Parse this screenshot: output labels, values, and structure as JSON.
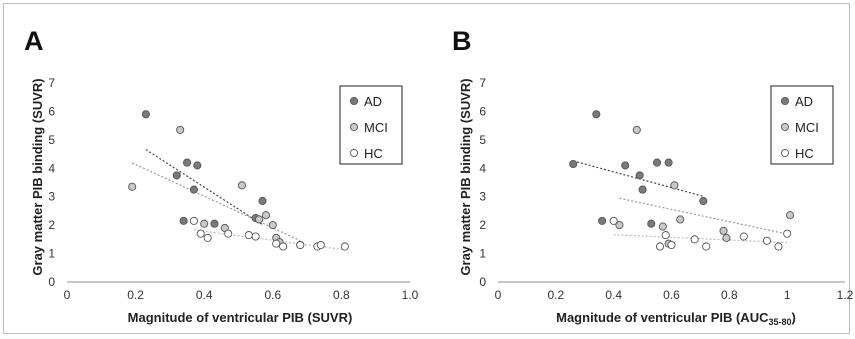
{
  "colors": {
    "AD": "#7a7a7a",
    "MCI": "#c8c8c8",
    "HC": "#ffffff",
    "marker_edge": "#555555",
    "trend_AD": "#444444",
    "trend_MCI": "#999999",
    "trend_HC": "#bbbbbb"
  },
  "chart_data": [
    {
      "type": "scatter",
      "panel_label": "A",
      "xlabel": "Magnitude of ventricular PIB (SUVR)",
      "ylabel": "Gray matter PIB binding (SUVR)",
      "xlim": [
        0,
        1.0
      ],
      "ylim": [
        0,
        7
      ],
      "x_ticks": [
        "0",
        "0.2",
        "0.4",
        "0.6",
        "0.8",
        "1.0"
      ],
      "y_ticks": [
        "0",
        "1",
        "2",
        "3",
        "4",
        "5",
        "6",
        "7"
      ],
      "legend": {
        "position": "right",
        "entries": [
          "AD",
          "MCI",
          "HC"
        ]
      },
      "series": [
        {
          "name": "AD",
          "trendline": true,
          "points": [
            [
              0.23,
              5.9
            ],
            [
              0.32,
              3.75
            ],
            [
              0.34,
              2.15
            ],
            [
              0.35,
              4.2
            ],
            [
              0.37,
              3.25
            ],
            [
              0.38,
              4.1
            ],
            [
              0.43,
              2.05
            ],
            [
              0.55,
              2.25
            ],
            [
              0.57,
              2.85
            ]
          ]
        },
        {
          "name": "MCI",
          "trendline": true,
          "points": [
            [
              0.19,
              3.35
            ],
            [
              0.33,
              5.35
            ],
            [
              0.4,
              2.05
            ],
            [
              0.46,
              1.9
            ],
            [
              0.51,
              3.4
            ],
            [
              0.56,
              2.2
            ],
            [
              0.58,
              2.35
            ],
            [
              0.6,
              2.0
            ],
            [
              0.61,
              1.55
            ],
            [
              0.62,
              1.4
            ],
            [
              0.68,
              1.3
            ]
          ]
        },
        {
          "name": "HC",
          "trendline": true,
          "points": [
            [
              0.37,
              2.15
            ],
            [
              0.39,
              1.7
            ],
            [
              0.41,
              1.55
            ],
            [
              0.47,
              1.7
            ],
            [
              0.53,
              1.65
            ],
            [
              0.55,
              1.6
            ],
            [
              0.61,
              1.35
            ],
            [
              0.63,
              1.25
            ],
            [
              0.68,
              1.3
            ],
            [
              0.73,
              1.25
            ],
            [
              0.74,
              1.3
            ],
            [
              0.81,
              1.25
            ]
          ]
        }
      ]
    },
    {
      "type": "scatter",
      "panel_label": "B",
      "xlabel_main": "Magnitude of ventricular PIB (AUC",
      "xlabel_sub": "35-80",
      "xlabel_end": ")",
      "ylabel": "Gray matter PIB binding (SUVR)",
      "xlim": [
        0,
        1.2
      ],
      "ylim": [
        0,
        7
      ],
      "x_ticks": [
        "0",
        "0.2",
        "0.4",
        "0.6",
        "0.8",
        "1",
        "1.2"
      ],
      "y_ticks": [
        "0",
        "1",
        "2",
        "3",
        "4",
        "5",
        "6",
        "7"
      ],
      "legend": {
        "position": "right",
        "entries": [
          "AD",
          "MCI",
          "HC"
        ]
      },
      "series": [
        {
          "name": "AD",
          "trendline": true,
          "points": [
            [
              0.26,
              4.15
            ],
            [
              0.34,
              5.9
            ],
            [
              0.36,
              2.15
            ],
            [
              0.44,
              4.1
            ],
            [
              0.49,
              3.75
            ],
            [
              0.5,
              3.25
            ],
            [
              0.53,
              2.05
            ],
            [
              0.55,
              4.2
            ],
            [
              0.59,
              4.2
            ],
            [
              0.71,
              2.85
            ]
          ]
        },
        {
          "name": "MCI",
          "trendline": true,
          "points": [
            [
              0.42,
              2.0
            ],
            [
              0.48,
              5.35
            ],
            [
              0.57,
              1.95
            ],
            [
              0.59,
              1.35
            ],
            [
              0.61,
              3.4
            ],
            [
              0.63,
              2.2
            ],
            [
              0.78,
              1.8
            ],
            [
              0.79,
              1.55
            ],
            [
              1.01,
              2.35
            ]
          ]
        },
        {
          "name": "HC",
          "trendline": true,
          "points": [
            [
              0.4,
              2.15
            ],
            [
              0.56,
              1.25
            ],
            [
              0.58,
              1.65
            ],
            [
              0.6,
              1.3
            ],
            [
              0.68,
              1.5
            ],
            [
              0.72,
              1.25
            ],
            [
              0.85,
              1.6
            ],
            [
              0.93,
              1.45
            ],
            [
              0.97,
              1.25
            ],
            [
              1.0,
              1.7
            ]
          ]
        }
      ]
    }
  ]
}
